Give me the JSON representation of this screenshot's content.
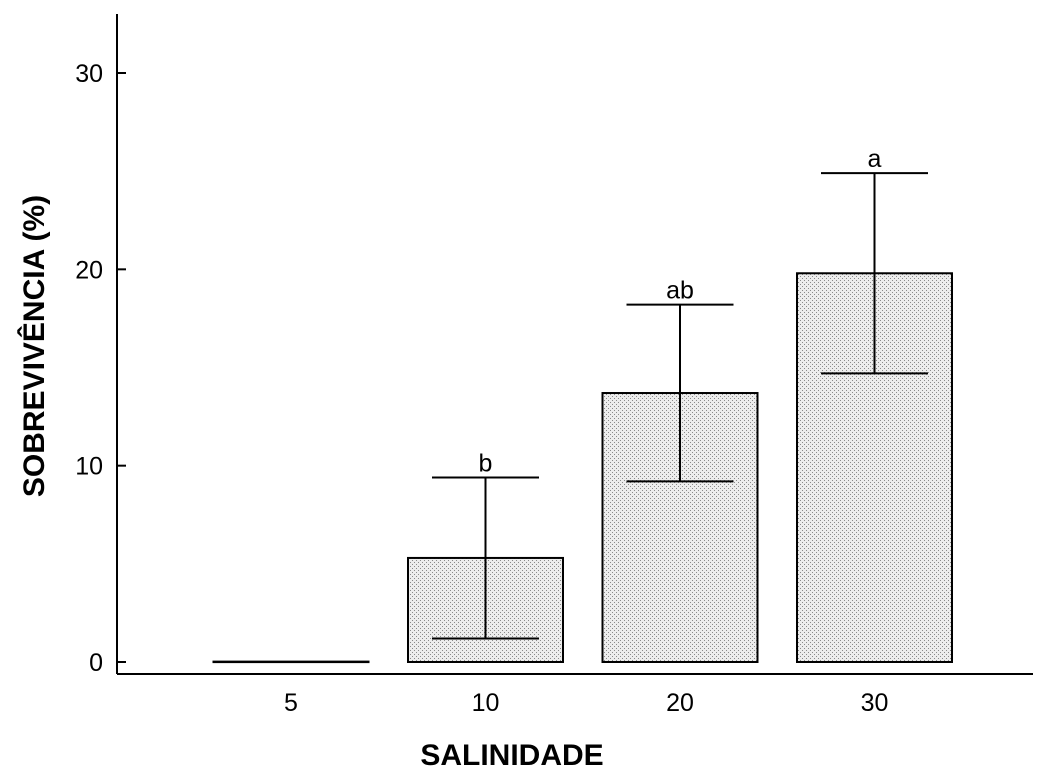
{
  "chart_data": {
    "type": "bar",
    "categories": [
      "5",
      "10",
      "20",
      "30"
    ],
    "values": [
      0,
      5.3,
      13.7,
      19.8
    ],
    "error_low": [
      0,
      1.2,
      9.2,
      14.7
    ],
    "error_high": [
      0,
      9.4,
      18.2,
      24.9
    ],
    "significance_labels": [
      "",
      "b",
      "ab",
      "a"
    ],
    "xlabel": "SALINIDADE",
    "ylabel": "SOBREVIVÊNCIA (%)",
    "yticks": [
      0,
      10,
      20,
      30
    ],
    "ylim": [
      -0.6,
      33
    ],
    "bar_fill": "#e8e8e8",
    "grid": false
  }
}
